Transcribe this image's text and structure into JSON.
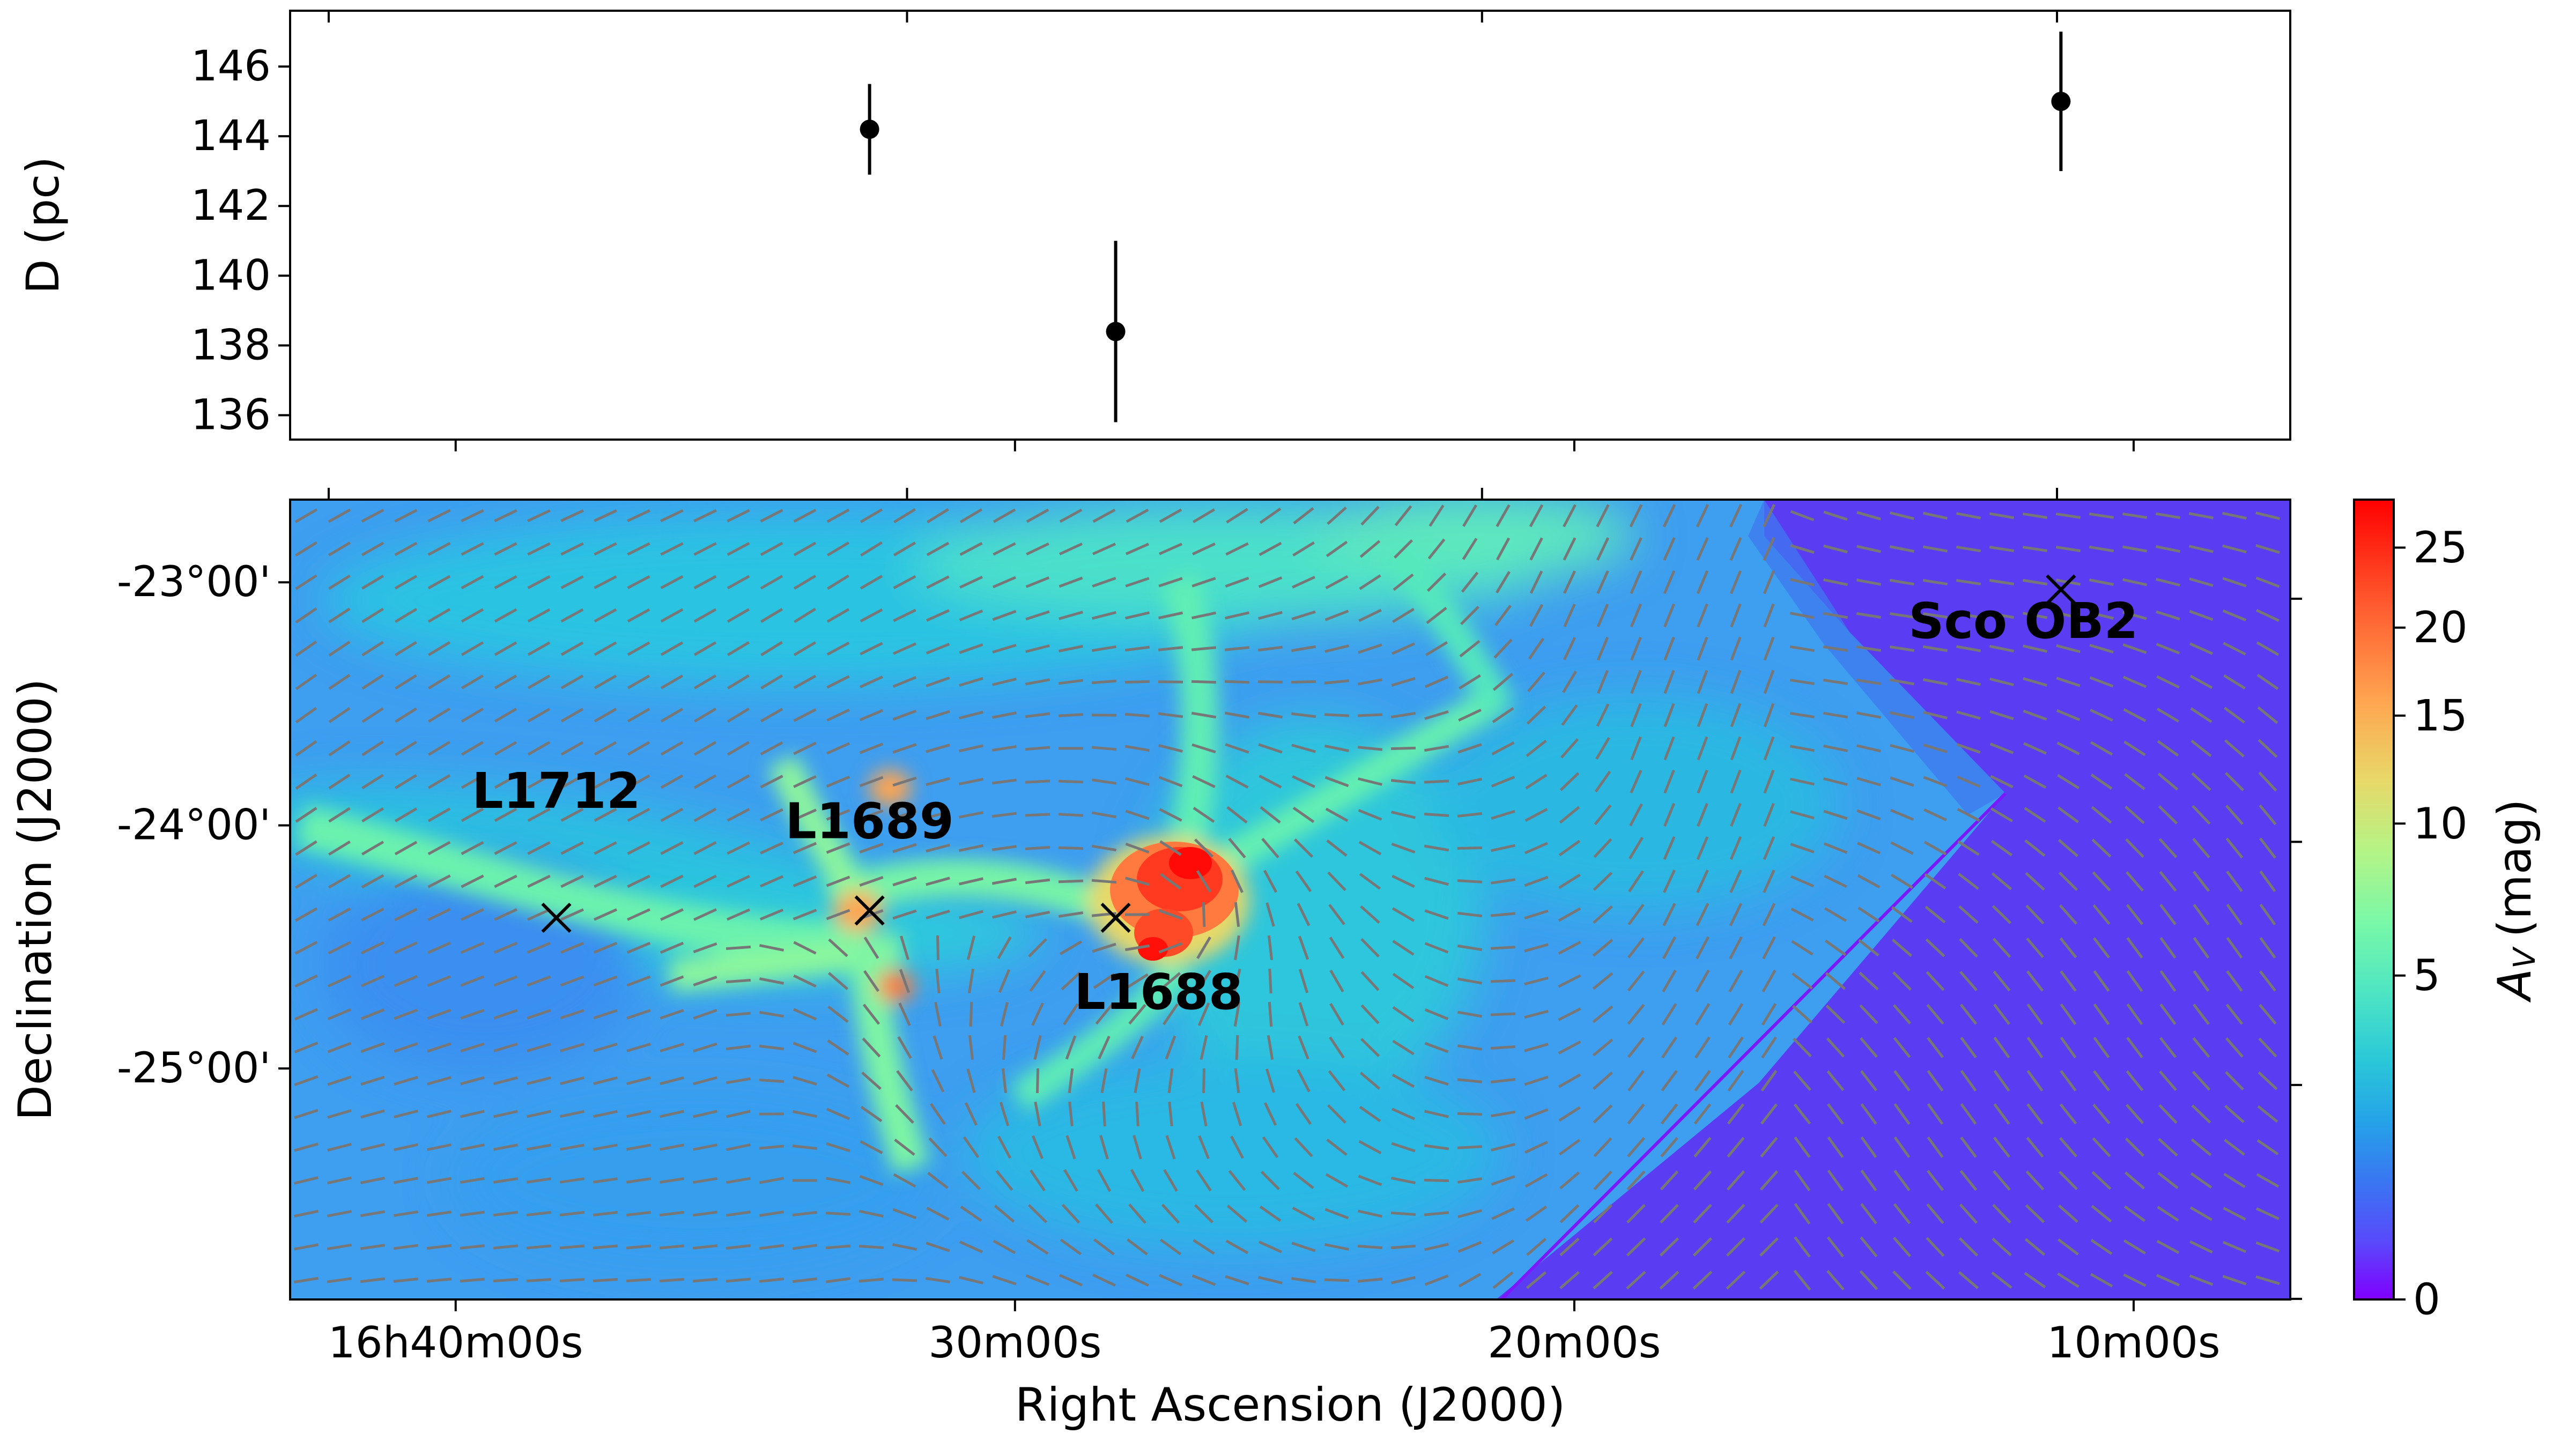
{
  "chart_data": [
    {
      "type": "scatter",
      "ylabel": "D (pc)",
      "ylim": [
        135.3,
        147.6
      ],
      "xlim_ra_min": [
        42.96,
        7.2
      ],
      "yticks": [
        "136",
        "138",
        "140",
        "142",
        "144",
        "146"
      ],
      "ytick_values": [
        136,
        138,
        140,
        142,
        144,
        146
      ],
      "points": [
        {
          "label": "L1689",
          "ra_min": 32.6,
          "d": 144.2,
          "err": 1.3
        },
        {
          "label": "L1688",
          "ra_min": 28.2,
          "d": 138.4,
          "err": 2.6
        },
        {
          "label": "Sco OB2",
          "ra_min": 11.3,
          "d": 145.0,
          "err": 2.0
        }
      ],
      "marker_color": "#000000"
    },
    {
      "type": "heatmap",
      "xlabel": "Right Ascension (J2000)",
      "ylabel": "Declination (J2000)",
      "xlim_ra_min": [
        42.96,
        7.2
      ],
      "ylim_dec_deg": [
        -25.95,
        -22.66
      ],
      "xticks": [
        "16h40m00s",
        "30m00s",
        "20m00s",
        "10m00s"
      ],
      "xtick_ra_min": [
        40,
        30,
        20,
        10
      ],
      "yticks": [
        "-23°00'",
        "-24°00'",
        "-25°00'"
      ],
      "ytick_dec_deg": [
        -23,
        -24,
        -25
      ],
      "colorbar": {
        "label": "A",
        "label_sub": "V",
        "label_suffix": "(mag)",
        "ticks": [
          "0",
          "5",
          "10",
          "15",
          "20",
          "25"
        ],
        "tick_values": [
          0,
          5,
          10,
          15,
          20,
          25
        ],
        "range": [
          0,
          27.5
        ],
        "colormap": "rainbow"
      },
      "sources": [
        {
          "name": "L1712",
          "ra_min": 38.2,
          "dec_deg": -24.38
        },
        {
          "name": "L1689",
          "ra_min": 32.6,
          "dec_deg": -24.35
        },
        {
          "name": "L1688",
          "ra_min": 28.2,
          "dec_deg": -24.38
        },
        {
          "name": "Sco OB2",
          "ra_min": 11.3,
          "dec_deg": -23.03
        }
      ],
      "vector_color": "#777777"
    }
  ]
}
